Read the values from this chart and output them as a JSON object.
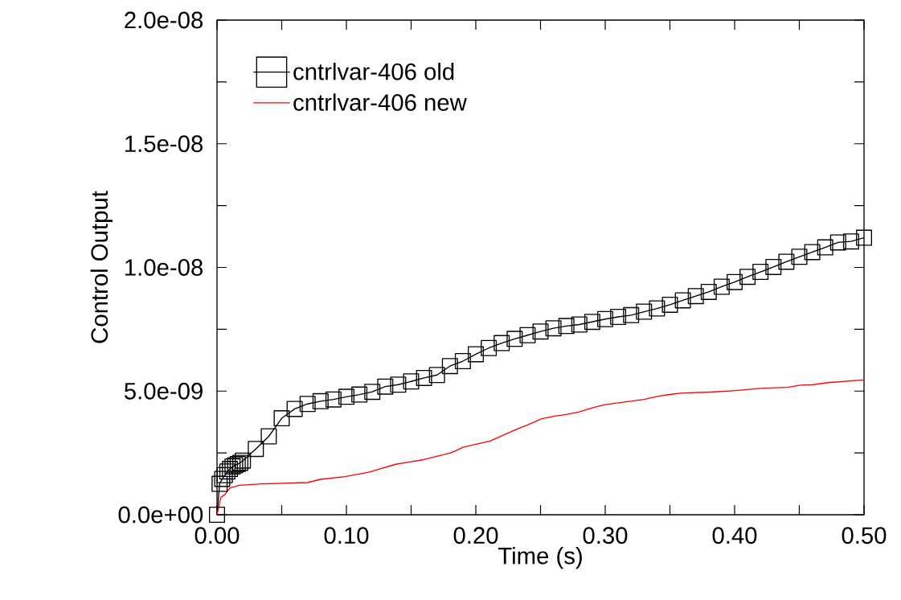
{
  "chart_data": {
    "type": "line",
    "xlabel": "Time (s)",
    "ylabel": "Control Output",
    "xlim": [
      0,
      0.5
    ],
    "ylim": [
      0,
      2e-08
    ],
    "xticks": [
      {
        "value": 0,
        "label": "0.00"
      },
      {
        "value": 0.05,
        "label": null
      },
      {
        "value": 0.1,
        "label": "0.10"
      },
      {
        "value": 0.15,
        "label": null
      },
      {
        "value": 0.2,
        "label": "0.20"
      },
      {
        "value": 0.25,
        "label": null
      },
      {
        "value": 0.3,
        "label": "0.30"
      },
      {
        "value": 0.35,
        "label": null
      },
      {
        "value": 0.4,
        "label": "0.40"
      },
      {
        "value": 0.45,
        "label": null
      },
      {
        "value": 0.5,
        "label": "0.50"
      }
    ],
    "yticks": [
      {
        "value": 0,
        "label": "0.0e+00"
      },
      {
        "value": 2.5e-09,
        "label": null
      },
      {
        "value": 5e-09,
        "label": "5.0e-09"
      },
      {
        "value": 7.5e-09,
        "label": null
      },
      {
        "value": 1e-08,
        "label": "1.0e-08"
      },
      {
        "value": 1.25e-08,
        "label": null
      },
      {
        "value": 1.5e-08,
        "label": "1.5e-08"
      },
      {
        "value": 1.75e-08,
        "label": null
      },
      {
        "value": 2e-08,
        "label": "2.0e-08"
      }
    ],
    "legend": "top left",
    "series": [
      {
        "name": "cntrlvar-406 old",
        "color": "#000000",
        "marker": "square",
        "x": [
          0,
          0.002,
          0.004,
          0.006,
          0.008,
          0.01,
          0.012,
          0.014,
          0.016,
          0.018,
          0.02,
          0.03,
          0.04,
          0.05,
          0.06,
          0.07,
          0.08,
          0.09,
          0.1,
          0.11,
          0.12,
          0.13,
          0.14,
          0.15,
          0.16,
          0.17,
          0.18,
          0.19,
          0.2,
          0.21,
          0.22,
          0.23,
          0.24,
          0.25,
          0.26,
          0.27,
          0.28,
          0.29,
          0.3,
          0.31,
          0.32,
          0.33,
          0.34,
          0.35,
          0.36,
          0.37,
          0.38,
          0.39,
          0.4,
          0.41,
          0.42,
          0.43,
          0.44,
          0.45,
          0.46,
          0.47,
          0.48,
          0.49,
          0.5
        ],
        "values": [
          0,
          1.25e-09,
          1.45e-09,
          1.6e-09,
          1.75e-09,
          1.85e-09,
          1.95e-09,
          2e-09,
          2.05e-09,
          2.1e-09,
          2.19e-09,
          2.66e-09,
          3.17e-09,
          3.9e-09,
          4.28e-09,
          4.48e-09,
          4.59e-09,
          4.66e-09,
          4.77e-09,
          4.86e-09,
          4.97e-09,
          5.18e-09,
          5.26e-09,
          5.39e-09,
          5.53e-09,
          5.65e-09,
          6.01e-09,
          6.21e-09,
          6.49e-09,
          6.74e-09,
          6.94e-09,
          7.11e-09,
          7.26e-09,
          7.41e-09,
          7.54e-09,
          7.63e-09,
          7.69e-09,
          7.8e-09,
          7.91e-09,
          8e-09,
          8.07e-09,
          8.21e-09,
          8.34e-09,
          8.49e-09,
          8.67e-09,
          8.84e-09,
          9.01e-09,
          9.22e-09,
          9.41e-09,
          9.62e-09,
          9.82e-09,
          1.002e-08,
          1.023e-08,
          1.043e-08,
          1.062e-08,
          1.081e-08,
          1.101e-08,
          1.105e-08,
          1.12e-08
        ]
      },
      {
        "name": "cntrlvar-406 new",
        "color": "#ff0000",
        "marker": "none",
        "x": [
          0,
          0.003,
          0.006,
          0.01,
          0.017,
          0.035,
          0.07,
          0.08,
          0.099,
          0.118,
          0.138,
          0.159,
          0.18,
          0.186,
          0.19,
          0.211,
          0.231,
          0.24,
          0.251,
          0.261,
          0.27,
          0.28,
          0.291,
          0.3,
          0.33,
          0.341,
          0.351,
          0.36,
          0.382,
          0.401,
          0.42,
          0.441,
          0.451,
          0.461,
          0.472,
          0.5
        ],
        "values": [
          0,
          7.1e-10,
          8.1e-10,
          1.08e-09,
          1.19e-09,
          1.25e-09,
          1.3e-09,
          1.43e-09,
          1.54e-09,
          1.73e-09,
          2.04e-09,
          2.22e-09,
          2.49e-09,
          2.62e-09,
          2.73e-09,
          2.98e-09,
          3.44e-09,
          3.63e-09,
          3.88e-09,
          3.99e-09,
          4.05e-09,
          4.16e-09,
          4.34e-09,
          4.45e-09,
          4.66e-09,
          4.79e-09,
          4.87e-09,
          4.92e-09,
          4.96e-09,
          5.02e-09,
          5.11e-09,
          5.15e-09,
          5.24e-09,
          5.26e-09,
          5.34e-09,
          5.45e-09
        ]
      }
    ]
  }
}
